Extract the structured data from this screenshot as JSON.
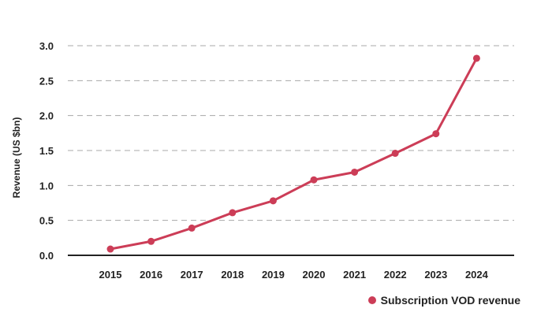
{
  "chart_data": {
    "type": "line",
    "title": "",
    "xlabel": "",
    "ylabel": "Revenue (US $bn)",
    "categories": [
      "2015",
      "2016",
      "2017",
      "2018",
      "2019",
      "2020",
      "2021",
      "2022",
      "2023",
      "2024"
    ],
    "series": [
      {
        "name": "Subscription VOD revenue",
        "color": "#cc3d57",
        "values": [
          0.09,
          0.2,
          0.39,
          0.61,
          0.78,
          1.08,
          1.19,
          1.46,
          1.74,
          2.82
        ]
      }
    ],
    "yticks": [
      "0.0",
      "0.5",
      "1.0",
      "1.5",
      "2.0",
      "2.5",
      "3.0"
    ],
    "ylim": [
      0,
      3.0
    ],
    "grid": true,
    "legend_position": "bottom-right"
  }
}
